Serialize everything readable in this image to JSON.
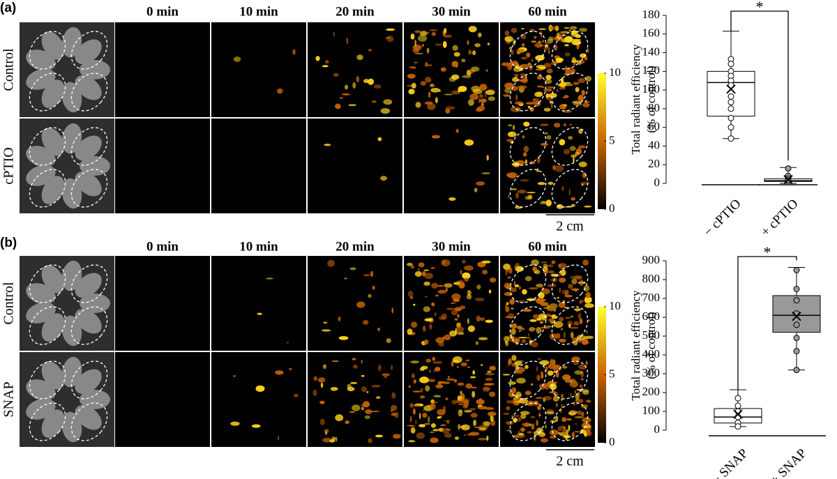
{
  "panels": [
    {
      "label": "(a)",
      "time_labels": [
        "0 min",
        "10 min",
        "20 min",
        "30 min",
        "60 min"
      ],
      "row_labels": [
        "Control",
        "cPTIO"
      ],
      "colorbar_ticks": [
        0,
        5,
        10
      ],
      "scale_bar": "2 cm",
      "boxplot": {
        "y_label": [
          "Total radiant efficiency",
          "(% of control)"
        ],
        "ylim": [
          0,
          180
        ],
        "yticks": [
          0,
          20,
          40,
          60,
          80,
          100,
          120,
          140,
          160,
          180
        ],
        "significance": "*",
        "groups": [
          {
            "name": "− cPTIO",
            "box_color": "#ffffff",
            "point_color": "#ffffff",
            "min": 48,
            "q1": 72,
            "median": 108,
            "q3": 120,
            "max": 163,
            "mean": 101,
            "points": [
              133,
              128,
              120,
              115,
              110,
              105,
              93,
              87,
              80,
              70,
              60,
              48
            ]
          },
          {
            "name": "+ cPTIO",
            "box_color": "#ffffff",
            "point_color": "#999999",
            "min": 0,
            "q1": 2,
            "median": 3,
            "q3": 5,
            "max": 17,
            "mean": 4,
            "points": [
              16,
              8,
              5,
              3
            ]
          }
        ]
      }
    },
    {
      "label": "(b)",
      "time_labels": [
        "0 min",
        "10 min",
        "20 min",
        "30 min",
        "60 min"
      ],
      "row_labels": [
        "Control",
        "SNAP"
      ],
      "colorbar_ticks": [
        0,
        5,
        10
      ],
      "scale_bar": "2 cm",
      "boxplot": {
        "y_label": [
          "Total radiant efficiency",
          "(% of control)"
        ],
        "ylim": [
          0,
          900
        ],
        "yticks": [
          0,
          100,
          200,
          300,
          400,
          500,
          600,
          700,
          800,
          900
        ],
        "significance": "*",
        "groups": [
          {
            "name": "− SNAP",
            "box_color": "#ffffff",
            "point_color": "#ffffff",
            "min": 19,
            "q1": 38,
            "median": 70,
            "q3": 115,
            "max": 215,
            "mean": 85,
            "points": [
              170,
              130,
              100,
              70,
              40,
              20
            ]
          },
          {
            "name": "+ SNAP",
            "box_color": "#999999",
            "point_color": "#999999",
            "min": 320,
            "q1": 520,
            "median": 610,
            "q3": 715,
            "max": 865,
            "mean": 605,
            "points": [
              850,
              750,
              690,
              620,
              560,
              490,
              420,
              320
            ]
          }
        ]
      }
    }
  ]
}
